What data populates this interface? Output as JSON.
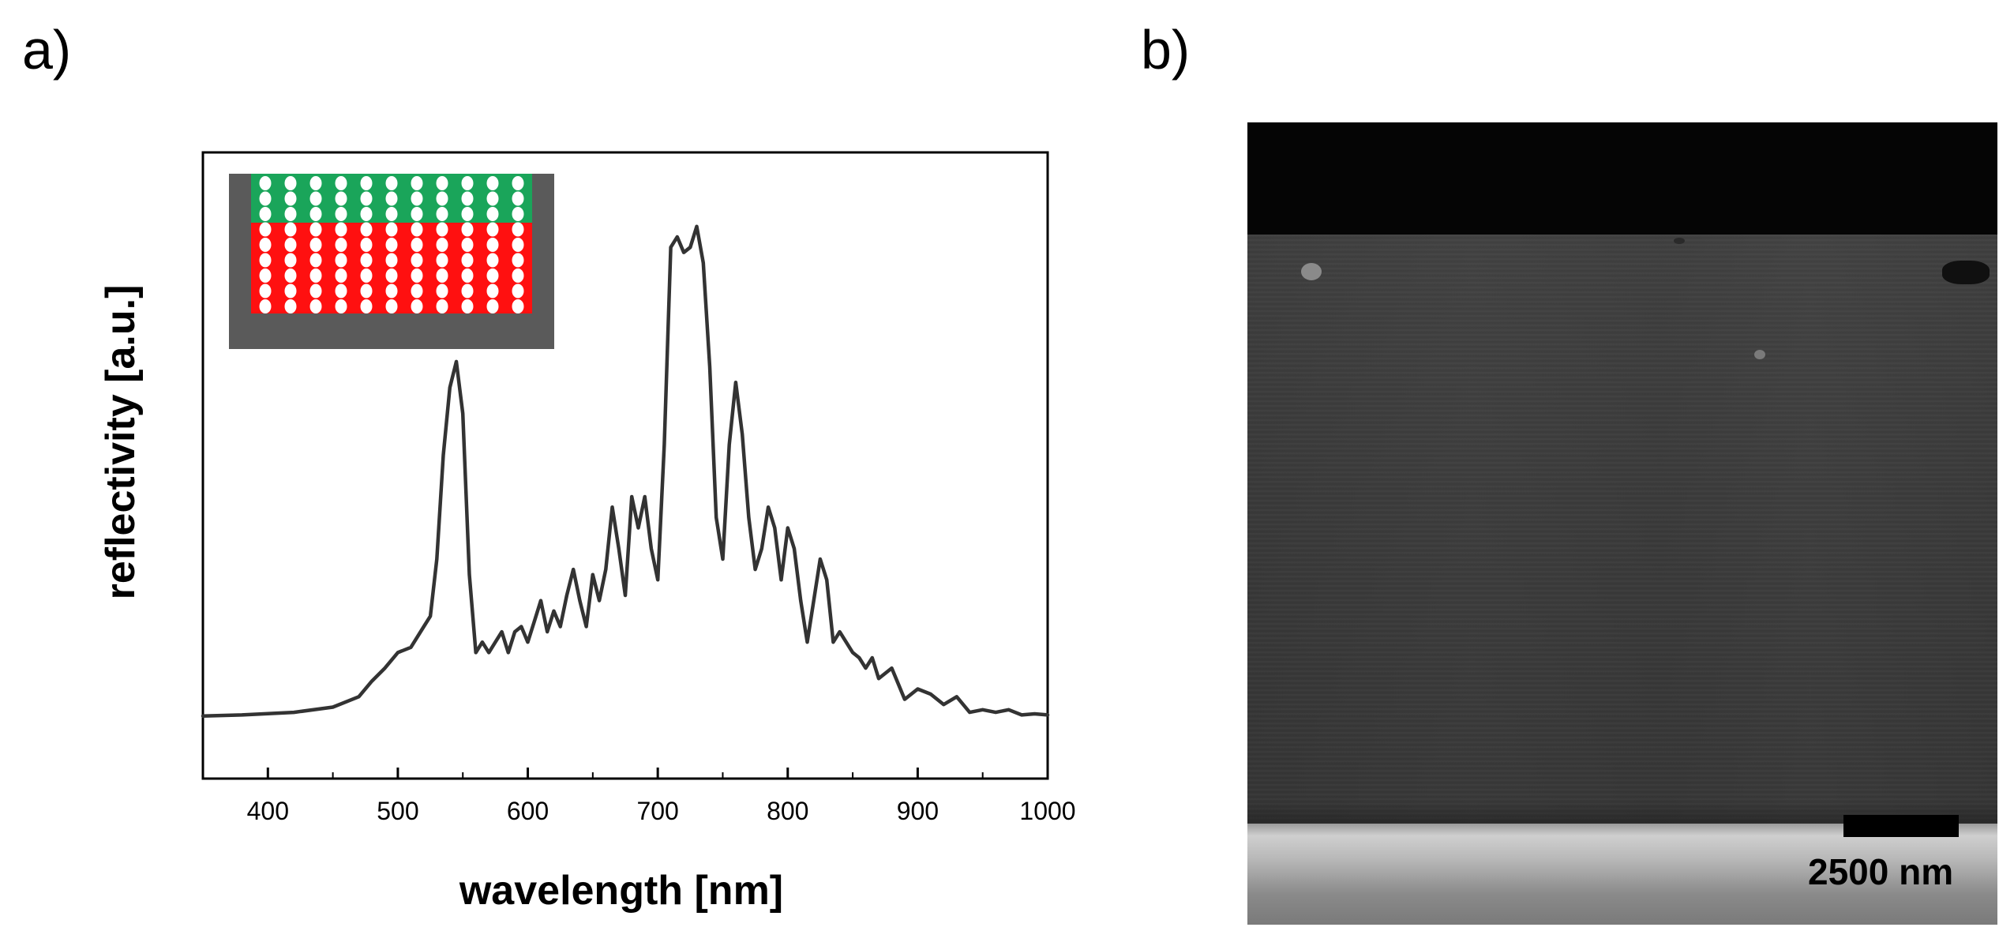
{
  "panel_a_label": "a)",
  "panel_b_label": "b)",
  "chart_data": {
    "type": "line",
    "title": "",
    "xlabel": "wavelength [nm]",
    "ylabel": "reflectivity [a.u.]",
    "xlim": [
      350,
      1000
    ],
    "ylim": [
      0,
      1
    ],
    "xticks": [
      400,
      500,
      600,
      700,
      800,
      900,
      1000
    ],
    "xtick_labels": [
      "400",
      "500",
      "600",
      "700",
      "800",
      "900",
      "1000"
    ],
    "yticks_shown": false,
    "grid": false,
    "line_color": "#333333",
    "series": [
      {
        "x": [
          350,
          380,
          420,
          450,
          470,
          480,
          490,
          500,
          510,
          520,
          525,
          530,
          535,
          540,
          545,
          550,
          555,
          560,
          565,
          570,
          575,
          580,
          585,
          590,
          595,
          600,
          605,
          610,
          615,
          620,
          625,
          630,
          635,
          640,
          645,
          650,
          655,
          660,
          665,
          670,
          675,
          680,
          685,
          690,
          695,
          700,
          705,
          710,
          715,
          720,
          725,
          730,
          735,
          740,
          745,
          750,
          755,
          760,
          765,
          770,
          775,
          780,
          785,
          790,
          795,
          800,
          805,
          810,
          815,
          820,
          825,
          830,
          835,
          840,
          845,
          850,
          855,
          860,
          865,
          870,
          875,
          880,
          890,
          900,
          910,
          920,
          930,
          940,
          950,
          960,
          970,
          980,
          990,
          1000
        ],
        "values": [
          0.078,
          0.08,
          0.085,
          0.095,
          0.115,
          0.145,
          0.17,
          0.2,
          0.21,
          0.25,
          0.27,
          0.38,
          0.58,
          0.71,
          0.76,
          0.66,
          0.35,
          0.2,
          0.22,
          0.2,
          0.22,
          0.24,
          0.2,
          0.24,
          0.25,
          0.22,
          0.26,
          0.3,
          0.24,
          0.28,
          0.25,
          0.31,
          0.36,
          0.3,
          0.25,
          0.35,
          0.3,
          0.36,
          0.48,
          0.4,
          0.31,
          0.5,
          0.44,
          0.5,
          0.4,
          0.34,
          0.6,
          0.98,
          1.0,
          0.97,
          0.98,
          1.02,
          0.95,
          0.75,
          0.46,
          0.38,
          0.6,
          0.72,
          0.62,
          0.46,
          0.36,
          0.4,
          0.48,
          0.44,
          0.34,
          0.44,
          0.4,
          0.3,
          0.22,
          0.3,
          0.38,
          0.34,
          0.22,
          0.24,
          0.22,
          0.2,
          0.19,
          0.17,
          0.19,
          0.15,
          0.16,
          0.17,
          0.11,
          0.13,
          0.12,
          0.1,
          0.115,
          0.085,
          0.09,
          0.085,
          0.09,
          0.08,
          0.082,
          0.08
        ]
      }
    ],
    "inset": {
      "description_colors": {
        "frame": "#5a5a5a",
        "top_layer": "#1aa55a",
        "bottom_layer": "#ff1010",
        "spheres": "#ffffff"
      }
    }
  },
  "sem": {
    "scale_bar_label": "2500 nm"
  }
}
